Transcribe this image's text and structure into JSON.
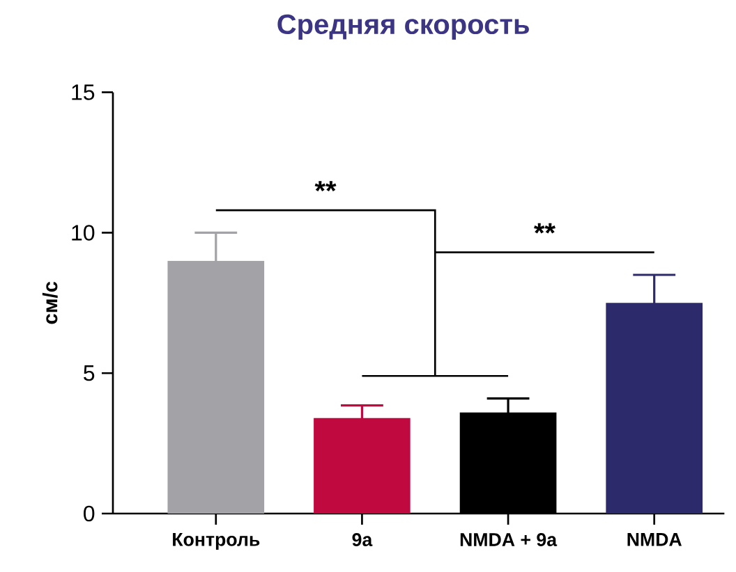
{
  "chart_data": {
    "type": "bar",
    "title": "Средняя скорость",
    "ylabel": "см/с",
    "categories": [
      "Контроль",
      "9a",
      "NMDA + 9a",
      "NMDA"
    ],
    "values": [
      9.0,
      3.4,
      3.6,
      7.5
    ],
    "colors": [
      "#a3a3a7",
      "#c0093f",
      "#000000",
      "#2d2a6c"
    ],
    "errors": [
      1.0,
      0.45,
      0.5,
      1.0
    ],
    "ylim": [
      0,
      15
    ],
    "yticks": [
      0,
      5,
      10,
      15
    ],
    "annotations": [
      "**",
      "**"
    ]
  }
}
